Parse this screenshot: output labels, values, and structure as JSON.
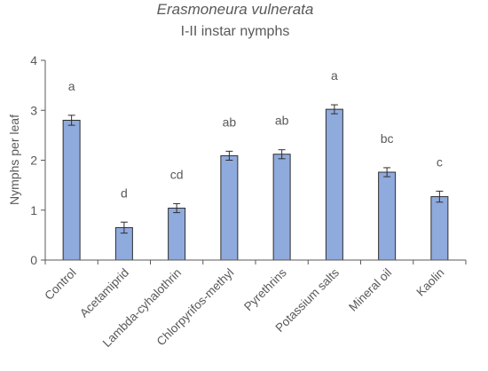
{
  "chart_data": {
    "type": "bar",
    "title": "Erasmoneura vulnerata",
    "subtitle": "I-II instar nymphs",
    "xlabel": "",
    "ylabel": "Nymphs per leaf",
    "ylim": [
      0,
      4
    ],
    "yticks": [
      "0",
      "1",
      "2",
      "3",
      "4"
    ],
    "grid": false,
    "categories": [
      "Control",
      "Acetamiprid",
      "Lambda-cyhalothrin",
      "Chlorpyrifos-methyl",
      "Pyrethrins",
      "Potassium salts",
      "Mineral oil",
      "Kaolin"
    ],
    "values": [
      2.8,
      0.65,
      1.04,
      2.09,
      2.12,
      3.02,
      1.76,
      1.27
    ],
    "errors": [
      0.1,
      0.11,
      0.09,
      0.09,
      0.09,
      0.09,
      0.09,
      0.11
    ],
    "labels": [
      "a",
      "d",
      "cd",
      "ab",
      "ab",
      "a",
      "bc",
      "c"
    ],
    "bar_color": "#8faadc",
    "bar_edge_color": "#2f2f2f"
  }
}
